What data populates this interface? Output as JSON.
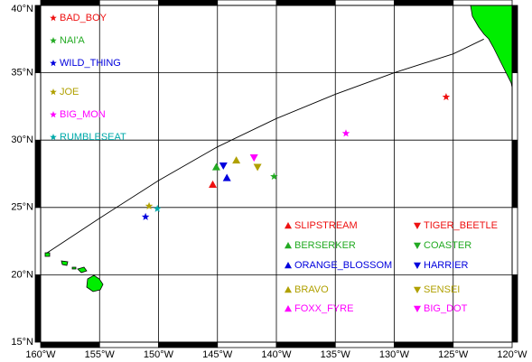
{
  "chart_data": {
    "type": "map",
    "xlim": [
      -160,
      -120
    ],
    "ylim": [
      15,
      40
    ],
    "xticks": [
      {
        "value": -160,
        "label": "160°W"
      },
      {
        "value": -155,
        "label": "155°W"
      },
      {
        "value": -150,
        "label": "150°W"
      },
      {
        "value": -145,
        "label": "145°W"
      },
      {
        "value": -140,
        "label": "140°W"
      },
      {
        "value": -135,
        "label": "135°W"
      },
      {
        "value": -130,
        "label": "130°W"
      },
      {
        "value": -125,
        "label": "125°W"
      },
      {
        "value": -120,
        "label": "120°W"
      }
    ],
    "yticks": [
      {
        "value": 15,
        "label": "15°N"
      },
      {
        "value": 20,
        "label": "20°N"
      },
      {
        "value": 25,
        "label": "25°N"
      },
      {
        "value": 30,
        "label": "30°N"
      },
      {
        "value": 35,
        "label": "35°N"
      },
      {
        "value": 40,
        "label": "40°N"
      }
    ],
    "grid": true,
    "track": {
      "color": "#000000",
      "x": [
        -159.5,
        -155,
        -150,
        -145,
        -140,
        -135,
        -130,
        -125,
        -122.4
      ],
      "values": [
        21.6,
        24.2,
        27,
        29.5,
        31.6,
        33.4,
        35,
        36.4,
        37.5
      ]
    },
    "series": [
      {
        "name": "BAD_BOY",
        "color": "#ee1111",
        "marker": "star",
        "x": [
          -125.6
        ],
        "values": [
          33.2
        ]
      },
      {
        "name": "NAI'A",
        "color": "#22aa22",
        "marker": "star",
        "x": [
          -140.2
        ],
        "values": [
          27.3
        ]
      },
      {
        "name": "WILD_THING",
        "color": "#0000dd",
        "marker": "star",
        "x": [
          -151.1
        ],
        "values": [
          24.3
        ]
      },
      {
        "name": "JOE",
        "color": "#b0a000",
        "marker": "star",
        "x": [
          -150.8
        ],
        "values": [
          25.1
        ]
      },
      {
        "name": "BIG_MON",
        "color": "#ff00ff",
        "marker": "star",
        "x": [
          -134.1
        ],
        "values": [
          30.5
        ]
      },
      {
        "name": "RUMBLESEAT",
        "color": "#00aaaa",
        "marker": "star",
        "x": [
          -150.1
        ],
        "values": [
          24.9
        ]
      },
      {
        "name": "SLIPSTREAM",
        "color": "#ee1111",
        "marker": "triangle-up",
        "x": [
          -145.4
        ],
        "values": [
          26.7
        ]
      },
      {
        "name": "BERSERKER",
        "color": "#22aa22",
        "marker": "triangle-up",
        "x": [
          -145.1
        ],
        "values": [
          28.0
        ]
      },
      {
        "name": "ORANGE_BLOSSOM",
        "color": "#0000dd",
        "marker": "triangle-up",
        "x": [
          -144.2
        ],
        "values": [
          27.2
        ]
      },
      {
        "name": "BRAVO",
        "color": "#b0a000",
        "marker": "triangle-up",
        "x": [
          -143.4
        ],
        "values": [
          28.5
        ]
      },
      {
        "name": "FOXX_FYRE",
        "color": "#ff00ff",
        "marker": "triangle-up",
        "x": [
          null
        ],
        "values": [
          null
        ]
      },
      {
        "name": "TIGER_BEETLE",
        "color": "#ee1111",
        "marker": "triangle-down",
        "x": [
          null
        ],
        "values": [
          null
        ]
      },
      {
        "name": "COASTER",
        "color": "#22aa22",
        "marker": "triangle-down",
        "x": [
          null
        ],
        "values": [
          null
        ]
      },
      {
        "name": "HARRIER",
        "color": "#0000dd",
        "marker": "triangle-down",
        "x": [
          -144.5
        ],
        "values": [
          28.1
        ]
      },
      {
        "name": "SENSEI",
        "color": "#b0a000",
        "marker": "triangle-down",
        "x": [
          -141.6
        ],
        "values": [
          28.0
        ]
      },
      {
        "name": "BIG_DOT",
        "color": "#ff00ff",
        "marker": "triangle-down",
        "x": [
          -141.9
        ],
        "values": [
          28.7
        ]
      }
    ]
  }
}
